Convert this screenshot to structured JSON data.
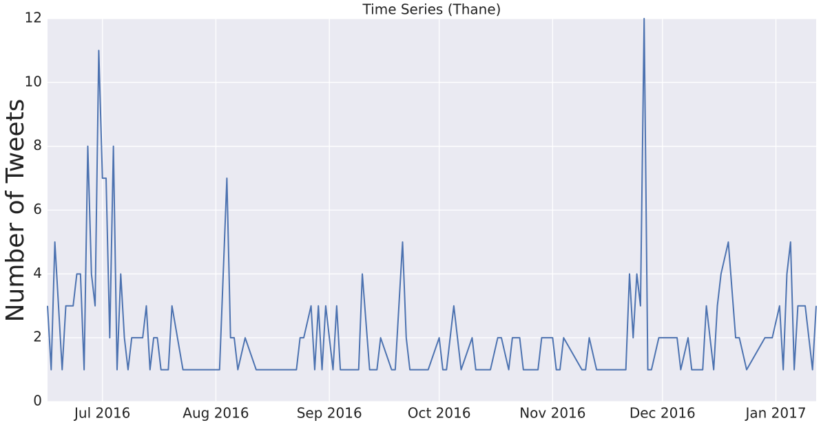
{
  "chart_data": {
    "type": "line",
    "title": "Time Series (Thane)",
    "ylabel": "Number of Tweets",
    "x": [
      0,
      1,
      2,
      4,
      5,
      7,
      8,
      9,
      10,
      11,
      12,
      13,
      14,
      15,
      16,
      17,
      18,
      19,
      20,
      21,
      22,
      23,
      26,
      27,
      28,
      29,
      30,
      31,
      33,
      34,
      37,
      47,
      49,
      50,
      51,
      52,
      54,
      57,
      68,
      69,
      70,
      72,
      73,
      74,
      75,
      76,
      78,
      79,
      80,
      85,
      86,
      88,
      90,
      91,
      94,
      95,
      97,
      98,
      99,
      104,
      107,
      108,
      109,
      111,
      113,
      116,
      117,
      121,
      123,
      124,
      126,
      127,
      129,
      130,
      134,
      135,
      138,
      139,
      140,
      141,
      146,
      147,
      148,
      150,
      158,
      159,
      160,
      161,
      162,
      163,
      164,
      165,
      167,
      172,
      173,
      175,
      176,
      179,
      180,
      182,
      183,
      184,
      186,
      188,
      189,
      191,
      196,
      198,
      200,
      201,
      202,
      203,
      204,
      205,
      207,
      209,
      210
    ],
    "series": [
      {
        "name": "Thane",
        "color": "#4c72b0",
        "values": [
          3,
          1,
          5,
          1,
          3,
          3,
          4,
          4,
          1,
          8,
          4,
          3,
          11,
          7,
          7,
          2,
          8,
          1,
          4,
          2,
          1,
          2,
          2,
          3,
          1,
          2,
          2,
          1,
          1,
          3,
          1,
          1,
          7,
          2,
          2,
          1,
          2,
          1,
          1,
          2,
          2,
          3,
          1,
          3,
          1,
          3,
          1,
          3,
          1,
          1,
          4,
          1,
          1,
          2,
          1,
          1,
          5,
          2,
          1,
          1,
          2,
          1,
          1,
          3,
          1,
          2,
          1,
          1,
          2,
          2,
          1,
          2,
          2,
          1,
          1,
          2,
          2,
          1,
          1,
          2,
          1,
          1,
          2,
          1,
          1,
          4,
          2,
          4,
          3,
          12,
          1,
          1,
          2,
          2,
          1,
          2,
          1,
          1,
          3,
          1,
          3,
          4,
          5,
          2,
          2,
          1,
          2,
          2,
          3,
          1,
          4,
          5,
          1,
          3,
          3,
          1,
          3
        ]
      }
    ],
    "xlim": [
      0,
      210
    ],
    "xticks": [
      {
        "value": 15,
        "label": "Jul 2016"
      },
      {
        "value": 46,
        "label": "Aug 2016"
      },
      {
        "value": 77,
        "label": "Sep 2016"
      },
      {
        "value": 107,
        "label": "Oct 2016"
      },
      {
        "value": 138,
        "label": "Nov 2016"
      },
      {
        "value": 168,
        "label": "Dec 2016"
      },
      {
        "value": 199,
        "label": "Jan 2017"
      }
    ],
    "ylim": [
      0,
      12
    ],
    "yticks": [
      0,
      2,
      4,
      6,
      8,
      10,
      12
    ],
    "grid": true
  }
}
